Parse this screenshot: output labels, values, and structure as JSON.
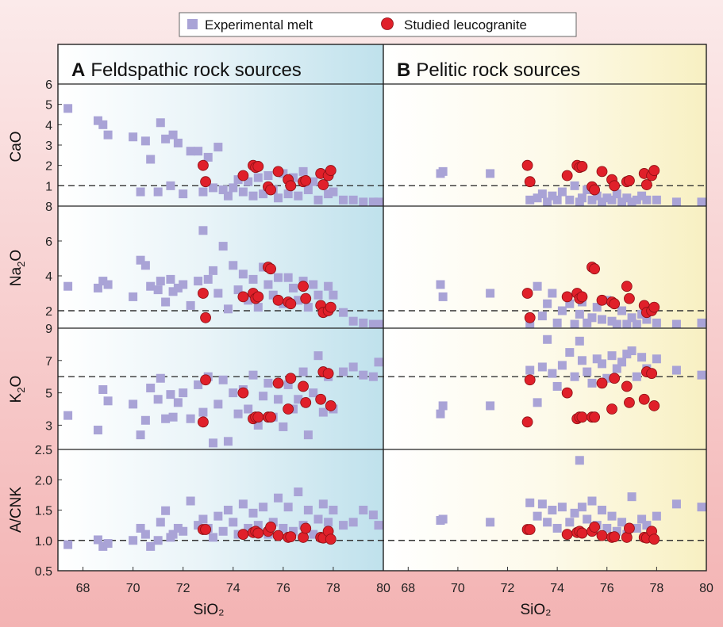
{
  "chart_data": {
    "type": "scatter",
    "legend": {
      "placement": "top-center",
      "entries": [
        {
          "label": "Experimental melt",
          "marker": "square",
          "color": "#a9a3d6"
        },
        {
          "label": "Studied leucogranite",
          "marker": "circle",
          "color": "#e0202a"
        }
      ]
    },
    "xlabel": "SiO₂",
    "x_ticks": [
      "68",
      "70",
      "72",
      "74",
      "76",
      "78",
      "80"
    ],
    "panels": [
      {
        "key": "A",
        "letter": "A",
        "title": "Feldspathic rock sources",
        "xlim": [
          67,
          80
        ]
      },
      {
        "key": "B",
        "letter": "B",
        "title": "Pelitic rock sources",
        "xlim": [
          67,
          80
        ]
      }
    ],
    "rows": [
      {
        "key": "cao",
        "ylabel_main": "CaO",
        "ylabel_sub": "",
        "ylim": [
          0,
          6
        ],
        "ticks": [
          "1",
          "2",
          "3",
          "4",
          "5",
          "6"
        ],
        "ref_line": 1
      },
      {
        "key": "na2o",
        "ylabel_main": "Na",
        "ylabel_sub": "2",
        "ylabel_tail": "O",
        "ylim": [
          1,
          8
        ],
        "ticks": [
          "2",
          "4",
          "6",
          "8"
        ],
        "ref_line": 2
      },
      {
        "key": "k2o",
        "ylabel_main": "K",
        "ylabel_sub": "2",
        "ylabel_tail": "O",
        "ylim": [
          1.5,
          9
        ],
        "ticks": [
          "3",
          "5",
          "7",
          "9"
        ],
        "ref_line": 6
      },
      {
        "key": "acnk",
        "ylabel_main": "A/CNK",
        "ylabel_sub": "",
        "ylim": [
          0.5,
          2.5
        ],
        "ticks": [
          "0.5",
          "1.0",
          "1.5",
          "2.0",
          "2.5"
        ],
        "ref_line": 1.0
      }
    ],
    "leucogranite": {
      "sio2": [
        72.8,
        72.9,
        74.4,
        74.8,
        74.9,
        75.0,
        75.4,
        75.5,
        75.8,
        76.2,
        76.3,
        76.8,
        76.9,
        77.5,
        77.6,
        77.8,
        77.9
      ],
      "cao": [
        2.0,
        1.2,
        1.5,
        2.0,
        1.9,
        1.95,
        0.95,
        0.8,
        1.7,
        1.3,
        1.0,
        1.2,
        1.25,
        1.6,
        1.05,
        1.5,
        1.75
      ],
      "na2o": [
        3.0,
        1.6,
        2.8,
        3.0,
        2.7,
        2.8,
        4.5,
        4.4,
        2.6,
        2.5,
        2.4,
        3.4,
        2.7,
        2.3,
        1.9,
        2.0,
        2.2
      ],
      "k2o": [
        3.2,
        5.8,
        5.0,
        3.4,
        3.5,
        3.5,
        3.5,
        3.5,
        5.6,
        4.0,
        5.9,
        5.4,
        4.4,
        4.6,
        6.3,
        6.2,
        4.2
      ],
      "acnk": [
        1.18,
        1.18,
        1.1,
        1.13,
        1.15,
        1.12,
        1.15,
        1.22,
        1.08,
        1.05,
        1.06,
        1.05,
        1.2,
        1.05,
        1.04,
        1.15,
        1.02
      ]
    },
    "melt_A": {
      "sio2": [
        67.4,
        68.6,
        68.8,
        69.0,
        70.0,
        70.3,
        70.5,
        70.7,
        71.0,
        71.1,
        71.3,
        71.5,
        71.6,
        71.8,
        72.0,
        72.3,
        72.6,
        72.8,
        73.0,
        73.2,
        73.4,
        73.6,
        73.8,
        74.0,
        74.2,
        74.4,
        74.6,
        74.8,
        75.0,
        75.2,
        75.4,
        75.6,
        75.8,
        76.0,
        76.2,
        76.4,
        76.6,
        76.8,
        77.0,
        77.2,
        77.4,
        77.6,
        77.8,
        78.0,
        78.4,
        78.8,
        79.2,
        79.6,
        80.0
      ],
      "cao": [
        4.8,
        4.2,
        4.0,
        3.5,
        3.4,
        0.7,
        3.2,
        2.3,
        0.7,
        4.1,
        3.3,
        1.0,
        3.5,
        3.1,
        0.6,
        2.7,
        2.7,
        0.7,
        2.4,
        0.9,
        2.9,
        0.8,
        0.5,
        0.9,
        1.3,
        0.7,
        1.2,
        0.5,
        1.4,
        0.6,
        1.5,
        0.8,
        0.4,
        1.6,
        0.6,
        1.4,
        0.5,
        1.7,
        0.8,
        1.2,
        0.3,
        1.6,
        0.6,
        0.7,
        0.3,
        0.3,
        0.2,
        0.2,
        0.2
      ],
      "na2o": [
        3.4,
        3.3,
        3.7,
        3.5,
        2.8,
        4.9,
        4.6,
        3.4,
        3.2,
        3.7,
        2.5,
        3.8,
        3.1,
        3.3,
        3.5,
        2.3,
        3.7,
        6.6,
        3.8,
        4.3,
        3.0,
        5.7,
        2.1,
        4.6,
        3.2,
        4.1,
        2.6,
        3.8,
        2.2,
        4.5,
        3.5,
        2.9,
        3.9,
        2.4,
        3.9,
        3.3,
        2.6,
        3.7,
        2.2,
        3.5,
        2.9,
        1.9,
        3.4,
        2.9,
        1.9,
        1.4,
        1.3,
        1.2,
        1.2
      ],
      "k2o": [
        3.6,
        2.7,
        5.2,
        4.5,
        4.3,
        2.4,
        3.3,
        5.3,
        4.6,
        5.9,
        3.4,
        4.9,
        3.5,
        4.4,
        5.0,
        3.4,
        5.5,
        3.8,
        6.0,
        1.9,
        4.3,
        5.8,
        2.0,
        5.0,
        3.7,
        5.2,
        4.0,
        6.1,
        3.0,
        4.8,
        5.6,
        3.5,
        4.6,
        2.9,
        5.5,
        4.0,
        4.6,
        6.3,
        2.4,
        5.0,
        7.3,
        3.8,
        6.0,
        4.0,
        6.3,
        6.6,
        6.1,
        6.0,
        6.9
      ],
      "acnk": [
        0.93,
        1.01,
        0.9,
        0.95,
        1.0,
        1.2,
        1.1,
        0.9,
        1.0,
        1.3,
        1.49,
        1.05,
        1.1,
        1.2,
        1.15,
        1.65,
        1.25,
        1.35,
        1.2,
        1.05,
        1.4,
        1.15,
        1.5,
        1.3,
        1.1,
        1.6,
        1.2,
        1.45,
        1.25,
        1.55,
        1.1,
        1.3,
        1.7,
        1.2,
        1.55,
        1.15,
        1.8,
        1.25,
        1.5,
        1.1,
        1.35,
        1.6,
        1.3,
        1.5,
        1.25,
        1.3,
        1.5,
        1.42,
        1.25
      ]
    },
    "melt_B": {
      "sio2": [
        69.3,
        69.4,
        71.3,
        72.9,
        73.2,
        73.4,
        73.6,
        73.8,
        74.0,
        74.2,
        74.5,
        74.7,
        74.9,
        75.0,
        75.2,
        75.4,
        75.6,
        75.8,
        76.0,
        76.2,
        76.4,
        76.6,
        76.8,
        77.0,
        77.2,
        77.4,
        77.6,
        78.0,
        78.8,
        79.9
      ],
      "cao": [
        1.6,
        1.7,
        1.6,
        0.3,
        0.4,
        0.6,
        0.2,
        0.5,
        0.3,
        0.7,
        0.3,
        1.0,
        0.2,
        0.4,
        0.8,
        0.3,
        0.5,
        0.2,
        0.4,
        0.3,
        0.6,
        0.2,
        0.4,
        0.2,
        0.3,
        0.5,
        0.3,
        0.3,
        0.2,
        0.2
      ],
      "na2o": [
        3.5,
        2.8,
        3.0,
        1.2,
        3.4,
        1.7,
        2.4,
        3.0,
        1.3,
        2.0,
        2.4,
        1.1,
        1.8,
        2.5,
        1.3,
        1.6,
        2.2,
        1.5,
        2.6,
        1.4,
        1.2,
        2.0,
        1.1,
        1.6,
        1.2,
        1.8,
        1.5,
        1.3,
        1.2,
        1.3
      ],
      "k2o": [
        3.7,
        4.2,
        4.2,
        6.4,
        4.4,
        6.6,
        8.3,
        6.2,
        5.4,
        6.7,
        7.5,
        6.0,
        8.2,
        7.0,
        6.3,
        5.6,
        7.1,
        6.8,
        5.9,
        7.3,
        6.5,
        6.9,
        7.4,
        7.6,
        6.0,
        7.2,
        6.5,
        7.1,
        6.4,
        6.1
      ],
      "acnk": [
        1.33,
        1.35,
        1.3,
        1.62,
        1.4,
        1.6,
        1.3,
        1.5,
        1.2,
        1.55,
        1.3,
        1.45,
        2.32,
        1.55,
        1.35,
        1.65,
        1.25,
        1.5,
        1.2,
        1.4,
        1.15,
        1.3,
        1.1,
        1.72,
        1.2,
        1.35,
        1.25,
        1.4,
        1.6,
        1.55
      ]
    }
  }
}
